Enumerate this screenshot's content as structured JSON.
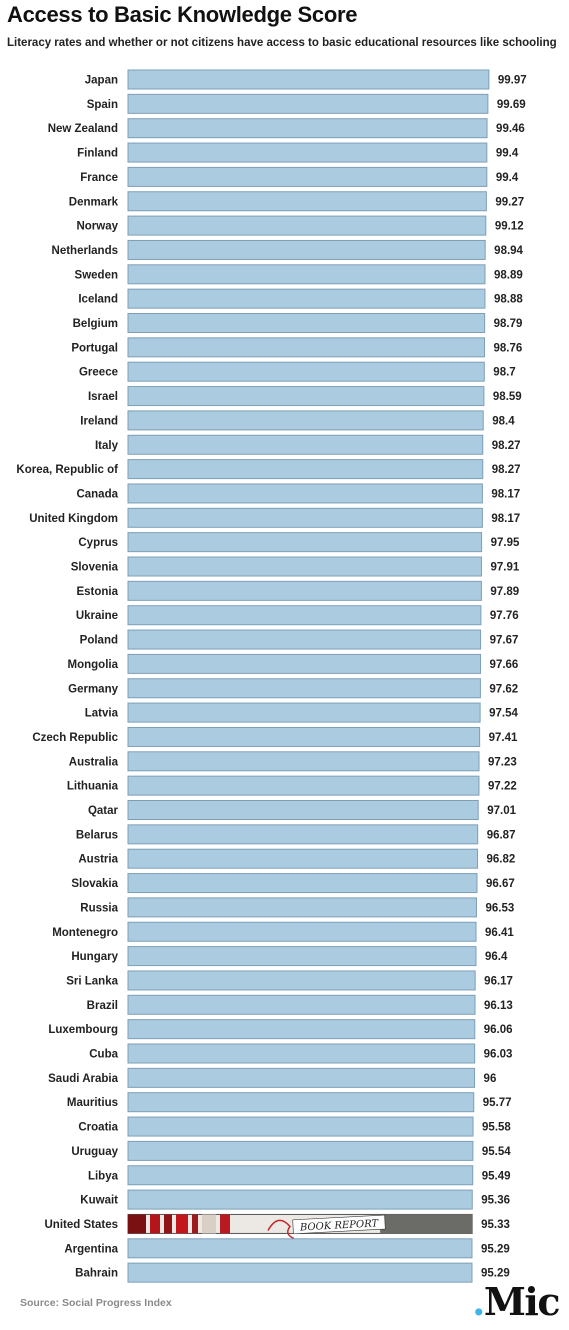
{
  "chart_data": {
    "type": "bar",
    "orientation": "horizontal",
    "title": "Access to Basic Knowledge Score",
    "subtitle": "Literacy rates and whether or not citizens have access to basic educational resources like schooling",
    "categories": [
      "Japan",
      "Spain",
      "New Zealand",
      "Finland",
      "France",
      "Denmark",
      "Norway",
      "Netherlands",
      "Sweden",
      "Iceland",
      "Belgium",
      "Portugal",
      "Greece",
      "Israel",
      "Ireland",
      "Italy",
      "Korea, Republic of",
      "Canada",
      "United Kingdom",
      "Cyprus",
      "Slovenia",
      "Estonia",
      "Ukraine",
      "Poland",
      "Mongolia",
      "Germany",
      "Latvia",
      "Czech Republic",
      "Australia",
      "Lithuania",
      "Qatar",
      "Belarus",
      "Austria",
      "Slovakia",
      "Russia",
      "Montenegro",
      "Hungary",
      "Sri Lanka",
      "Brazil",
      "Luxembourg",
      "Cuba",
      "Saudi Arabia",
      "Mauritius",
      "Croatia",
      "Uruguay",
      "Libya",
      "Kuwait",
      "United States",
      "Argentina",
      "Bahrain"
    ],
    "values": [
      99.97,
      99.69,
      99.46,
      99.4,
      99.4,
      99.27,
      99.12,
      98.94,
      98.89,
      98.88,
      98.79,
      98.76,
      98.7,
      98.59,
      98.4,
      98.27,
      98.27,
      98.17,
      98.17,
      97.95,
      97.91,
      97.89,
      97.76,
      97.67,
      97.66,
      97.62,
      97.54,
      97.41,
      97.23,
      97.22,
      97.01,
      96.87,
      96.82,
      96.67,
      96.53,
      96.41,
      96.4,
      96.17,
      96.13,
      96.06,
      96.03,
      96,
      95.77,
      95.58,
      95.54,
      95.49,
      95.36,
      95.33,
      95.29,
      95.29
    ],
    "value_labels": [
      "99.97",
      "99.69",
      "99.46",
      "99.4",
      "99.4",
      "99.27",
      "99.12",
      "98.94",
      "98.89",
      "98.88",
      "98.79",
      "98.76",
      "98.7",
      "98.59",
      "98.4",
      "98.27",
      "98.27",
      "98.17",
      "98.17",
      "97.95",
      "97.91",
      "97.89",
      "97.76",
      "97.67",
      "97.66",
      "97.62",
      "97.54",
      "97.41",
      "97.23",
      "97.22",
      "97.01",
      "96.87",
      "96.82",
      "96.67",
      "96.53",
      "96.41",
      "96.4",
      "96.17",
      "96.13",
      "96.06",
      "96.03",
      "96",
      "95.77",
      "95.58",
      "95.54",
      "95.49",
      "95.36",
      "95.33",
      "95.29",
      "95.29"
    ],
    "highlight": {
      "category": "United States",
      "overlay_text": "BOOK REPORT"
    },
    "xlim": [
      0,
      100
    ],
    "grid": false,
    "legend": "none",
    "colors": {
      "bar": "#abcbe0",
      "bar_border": "#7d9fb6"
    }
  },
  "footer": {
    "source": "Source: Social Progress Index",
    "logo_dot": ".",
    "logo_text": "Mic"
  }
}
